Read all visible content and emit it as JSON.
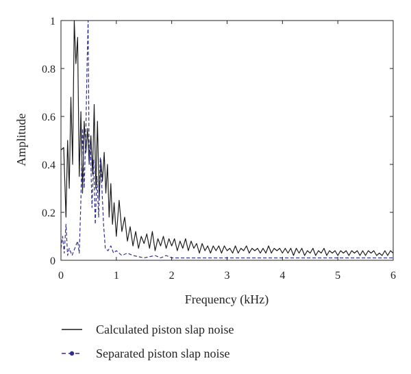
{
  "chart_data": {
    "type": "line",
    "xlabel": "Frequency (kHz)",
    "ylabel": "Amplitude",
    "xlim": [
      0,
      6
    ],
    "ylim": [
      0,
      1
    ],
    "xticks": [
      0,
      1,
      2,
      3,
      4,
      5,
      6
    ],
    "yticks": [
      0,
      0.2,
      0.4,
      0.6,
      0.8,
      1
    ],
    "ytick_labels": [
      "0",
      "0.2",
      "0.4",
      "0.6",
      "0.8",
      "1"
    ],
    "grid": false,
    "legend_position": "bottom, below axes",
    "series": [
      {
        "name": "Calculated piston slap noise",
        "color": "#1a1a1a",
        "style": "solid",
        "x": [
          0,
          0.05,
          0.09,
          0.12,
          0.15,
          0.18,
          0.21,
          0.24,
          0.27,
          0.3,
          0.33,
          0.36,
          0.39,
          0.42,
          0.45,
          0.48,
          0.51,
          0.54,
          0.57,
          0.6,
          0.63,
          0.66,
          0.69,
          0.72,
          0.75,
          0.78,
          0.81,
          0.84,
          0.87,
          0.9,
          0.93,
          0.96,
          1.0,
          1.05,
          1.1,
          1.15,
          1.2,
          1.25,
          1.3,
          1.35,
          1.4,
          1.45,
          1.5,
          1.55,
          1.6,
          1.65,
          1.7,
          1.75,
          1.8,
          1.85,
          1.9,
          1.95,
          2.0,
          2.05,
          2.1,
          2.15,
          2.2,
          2.25,
          2.3,
          2.35,
          2.4,
          2.45,
          2.5,
          2.55,
          2.6,
          2.65,
          2.7,
          2.75,
          2.8,
          2.85,
          2.9,
          2.95,
          3.0,
          3.05,
          3.1,
          3.15,
          3.2,
          3.25,
          3.3,
          3.35,
          3.4,
          3.45,
          3.5,
          3.55,
          3.6,
          3.65,
          3.7,
          3.75,
          3.8,
          3.85,
          3.9,
          3.95,
          4.0,
          4.05,
          4.1,
          4.15,
          4.2,
          4.25,
          4.3,
          4.35,
          4.4,
          4.45,
          4.5,
          4.55,
          4.6,
          4.65,
          4.7,
          4.75,
          4.8,
          4.85,
          4.9,
          4.95,
          5.0,
          5.05,
          5.1,
          5.15,
          5.2,
          5.25,
          5.3,
          5.35,
          5.4,
          5.45,
          5.5,
          5.55,
          5.6,
          5.65,
          5.7,
          5.75,
          5.8,
          5.85,
          5.9,
          5.95,
          6.0
        ],
        "y": [
          0.46,
          0.47,
          0.18,
          0.5,
          0.3,
          0.68,
          0.4,
          1.0,
          0.82,
          0.93,
          0.35,
          0.62,
          0.28,
          0.58,
          0.45,
          0.55,
          0.4,
          0.52,
          0.36,
          0.65,
          0.3,
          0.58,
          0.25,
          0.42,
          0.33,
          0.45,
          0.28,
          0.4,
          0.18,
          0.32,
          0.15,
          0.24,
          0.1,
          0.25,
          0.12,
          0.18,
          0.08,
          0.14,
          0.06,
          0.12,
          0.05,
          0.1,
          0.07,
          0.11,
          0.05,
          0.12,
          0.04,
          0.09,
          0.06,
          0.1,
          0.05,
          0.09,
          0.06,
          0.09,
          0.04,
          0.08,
          0.05,
          0.09,
          0.04,
          0.08,
          0.05,
          0.07,
          0.03,
          0.07,
          0.04,
          0.06,
          0.03,
          0.06,
          0.04,
          0.06,
          0.03,
          0.06,
          0.04,
          0.05,
          0.03,
          0.06,
          0.03,
          0.05,
          0.04,
          0.06,
          0.03,
          0.05,
          0.04,
          0.05,
          0.03,
          0.05,
          0.03,
          0.06,
          0.03,
          0.05,
          0.04,
          0.05,
          0.03,
          0.05,
          0.03,
          0.05,
          0.02,
          0.05,
          0.03,
          0.05,
          0.02,
          0.04,
          0.03,
          0.05,
          0.02,
          0.04,
          0.03,
          0.05,
          0.02,
          0.04,
          0.03,
          0.04,
          0.02,
          0.04,
          0.03,
          0.04,
          0.02,
          0.04,
          0.03,
          0.04,
          0.02,
          0.04,
          0.02,
          0.04,
          0.03,
          0.04,
          0.02,
          0.03,
          0.02,
          0.04,
          0.02,
          0.04,
          0.03
        ]
      },
      {
        "name": "Separated piston slap noise",
        "color": "#2e2f8f",
        "style": "dashed",
        "x": [
          0,
          0.03,
          0.06,
          0.09,
          0.12,
          0.15,
          0.2,
          0.25,
          0.3,
          0.33,
          0.36,
          0.39,
          0.42,
          0.45,
          0.47,
          0.49,
          0.51,
          0.53,
          0.56,
          0.59,
          0.62,
          0.65,
          0.68,
          0.71,
          0.74,
          0.77,
          0.8,
          0.85,
          0.9,
          0.95,
          1.0,
          1.1,
          1.2,
          1.3,
          1.5,
          1.7,
          1.8,
          1.9,
          2.0,
          2.5,
          3.0,
          3.5,
          4.0,
          4.5,
          5.0,
          5.5,
          6.0
        ],
        "y": [
          0.05,
          0.1,
          0.03,
          0.15,
          0.02,
          0.05,
          0.02,
          0.05,
          0.08,
          0.03,
          0.25,
          0.55,
          0.3,
          0.55,
          0.8,
          1.0,
          0.4,
          0.5,
          0.22,
          0.42,
          0.15,
          0.35,
          0.18,
          0.43,
          0.3,
          0.15,
          0.05,
          0.04,
          0.06,
          0.03,
          0.04,
          0.02,
          0.03,
          0.02,
          0.01,
          0.02,
          0.01,
          0.02,
          0.01,
          0.01,
          0.01,
          0.01,
          0.01,
          0.01,
          0.01,
          0.01,
          0.01
        ]
      }
    ]
  }
}
